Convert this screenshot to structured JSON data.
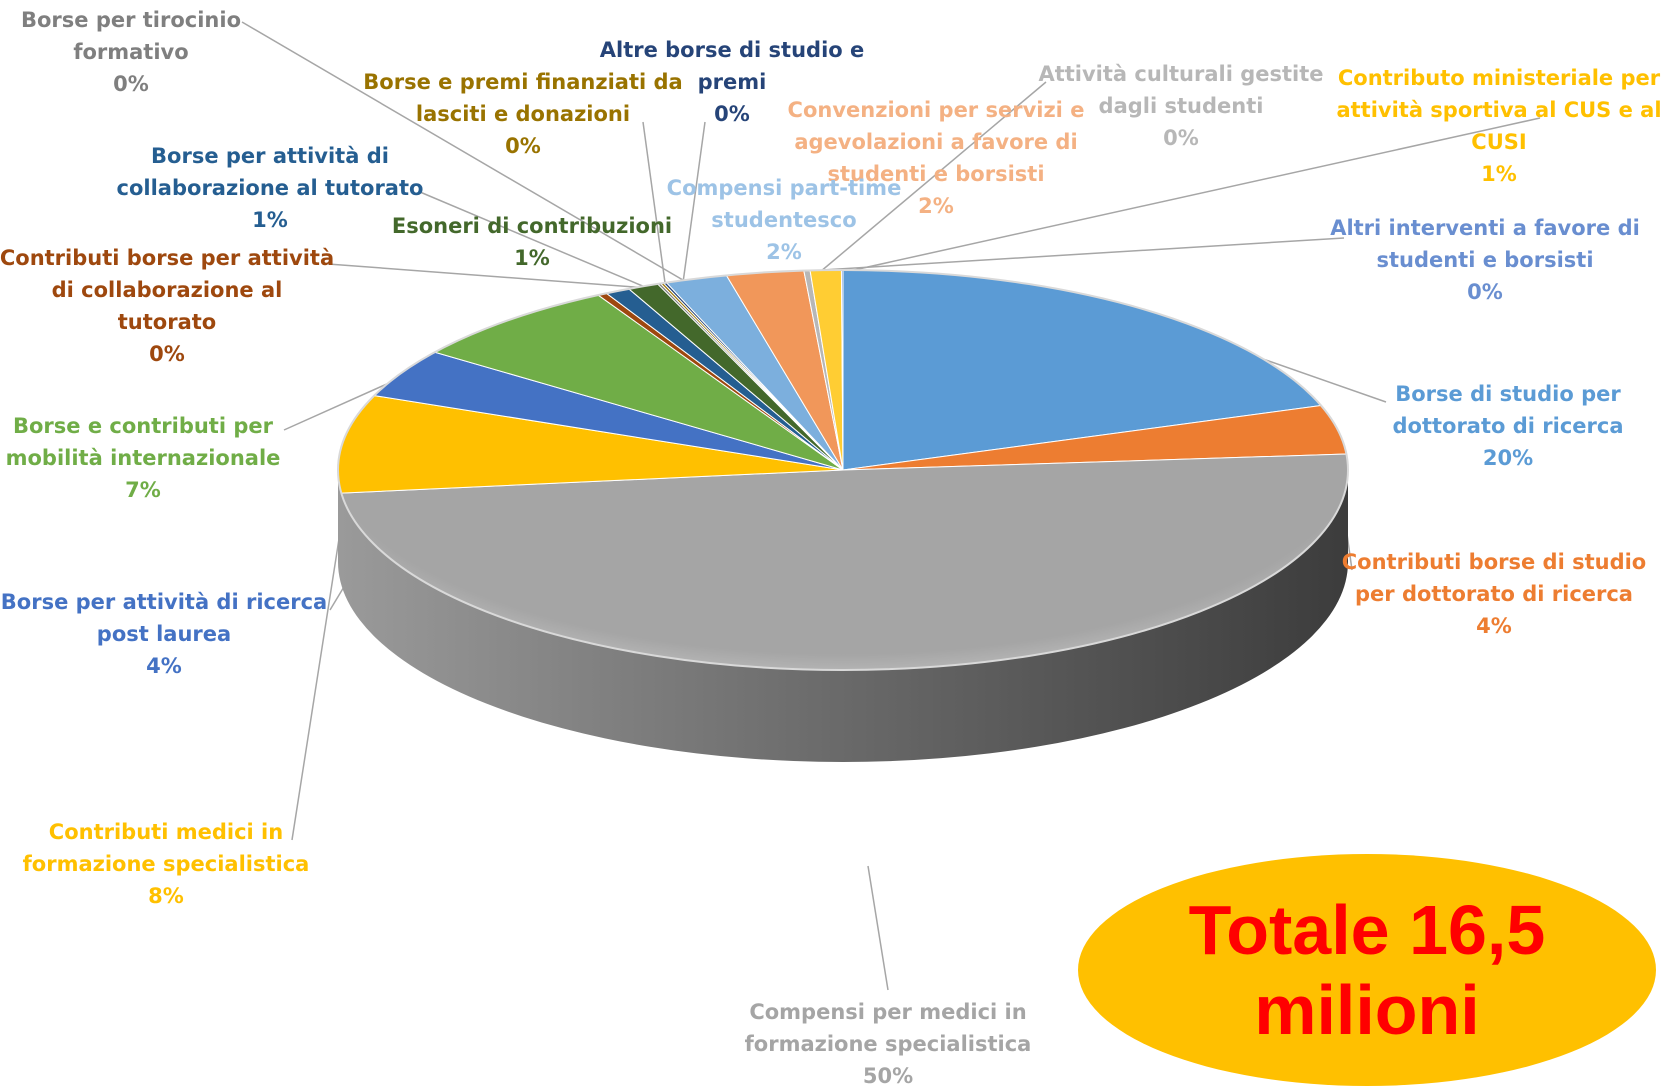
{
  "chart_data": {
    "type": "pie",
    "title": "",
    "slices": [
      {
        "label": "Borse di studio per dottorato di ricerca",
        "value": 20,
        "pct_label": "20%",
        "color": "#5b9bd5"
      },
      {
        "label": "Contributi borse di studio per dottorato di ricerca",
        "value": 4,
        "pct_label": "4%",
        "color": "#ed7d31"
      },
      {
        "label": "Compensi per medici in formazione specialistica",
        "value": 50,
        "pct_label": "50%",
        "color": "#a5a5a5"
      },
      {
        "label": "Contributi medici in formazione specialistica",
        "value": 8,
        "pct_label": "8%",
        "color": "#ffc000"
      },
      {
        "label": "Borse per attività di ricerca post laurea",
        "value": 4,
        "pct_label": "4%",
        "color": "#4472c4"
      },
      {
        "label": "Borse e contributi per mobilità internazionale",
        "value": 7,
        "pct_label": "7%",
        "color": "#70ad47"
      },
      {
        "label": "Contributi borse per attività di collaborazione al tutorato",
        "value": 0.3,
        "pct_label": "0%",
        "color": "#9e480e"
      },
      {
        "label": "Borse per attività di collaborazione al tutorato",
        "value": 0.8,
        "pct_label": "1%",
        "color": "#255e91"
      },
      {
        "label": "Esoneri di contribuzioni",
        "value": 1,
        "pct_label": "1%",
        "color": "#43682b"
      },
      {
        "label": "Borse per tirocinio formativo",
        "value": 0.1,
        "pct_label": "0%",
        "color": "#7f7f7f"
      },
      {
        "label": "Borse e premi finanziati da lasciti e donazioni",
        "value": 0.1,
        "pct_label": "0%",
        "color": "#997300"
      },
      {
        "label": "Altre borse di studio e premi",
        "value": 0.1,
        "pct_label": "0%",
        "color": "#264478"
      },
      {
        "label": "Compensi part-time studentesco",
        "value": 2,
        "pct_label": "2%",
        "color": "#7cafdd"
      },
      {
        "label": "Convenzioni per servizi e agevolazioni a favore di studenti e borsisti",
        "value": 2.5,
        "pct_label": "2%",
        "color": "#f1975a"
      },
      {
        "label": "Attività culturali gestite dagli studenti",
        "value": 0.2,
        "pct_label": "0%",
        "color": "#b7b7b7"
      },
      {
        "label": "Contributo ministeriale per attività sportiva al CUS e al CUSI",
        "value": 1,
        "pct_label": "1%",
        "color": "#ffcd33"
      },
      {
        "label": "Altri interventi a favore di studenti e borsisti",
        "value": 0.05,
        "pct_label": "0%",
        "color": "#698ed0"
      }
    ],
    "legend": "none",
    "data_labels": "outside with leader lines",
    "style": "3d-exploded-view"
  },
  "labels": [
    {
      "lines": [
        "Borse per tirocinio",
        "formativo"
      ],
      "pct": "0%",
      "color": "#7f7f7f",
      "name": "borse-tirocinio"
    },
    {
      "lines": [
        "Altre borse di studio e",
        "premi"
      ],
      "pct": "0%",
      "color": "#264478",
      "name": "altre-borse"
    },
    {
      "lines": [
        "Borse e premi finanziati da",
        "lasciti e donazioni"
      ],
      "pct": "0%",
      "color": "#997300",
      "name": "borse-lasciti"
    },
    {
      "lines": [
        "Attività culturali gestite",
        "dagli studenti"
      ],
      "pct": "0%",
      "color": "#b7b7b7",
      "name": "attivita-culturali"
    },
    {
      "lines": [
        "Contributo ministeriale per",
        "attività sportiva al CUS e al",
        "CUSI"
      ],
      "pct": "1%",
      "color": "#ffc000",
      "name": "contributo-cus"
    },
    {
      "lines": [
        "Convenzioni per servizi e",
        "agevolazioni a favore di",
        "studenti e borsisti"
      ],
      "pct": "2%",
      "color": "#f4b183",
      "name": "convenzioni"
    },
    {
      "lines": [
        "Borse per attività di",
        "collaborazione al tutorato"
      ],
      "pct": "1%",
      "color": "#255e91",
      "name": "borse-tutorato"
    },
    {
      "lines": [
        "Compensi part-time",
        "studentesco"
      ],
      "pct": "2%",
      "color": "#9dc3e6",
      "name": "part-time"
    },
    {
      "lines": [
        "Esoneri di contribuzioni"
      ],
      "pct": "1%",
      "color": "#43682b",
      "name": "esoneri"
    },
    {
      "lines": [
        "Altri interventi a favore di",
        "studenti e borsisti"
      ],
      "pct": "0%",
      "color": "#698ed0",
      "name": "altri-interventi"
    },
    {
      "lines": [
        "Contributi borse per attività",
        "di collaborazione al",
        "tutorato"
      ],
      "pct": "0%",
      "color": "#9e480e",
      "name": "contributi-tutorato"
    },
    {
      "lines": [
        "Borse di studio per",
        "dottorato di ricerca"
      ],
      "pct": "20%",
      "color": "#5b9bd5",
      "name": "borse-dottorato"
    },
    {
      "lines": [
        "Borse e contributi per",
        "mobilità internazionale"
      ],
      "pct": "7%",
      "color": "#70ad47",
      "name": "mobilita"
    },
    {
      "lines": [
        "Contributi borse di studio",
        "per dottorato di ricerca"
      ],
      "pct": "4%",
      "color": "#ed7d31",
      "name": "contributi-dottorato"
    },
    {
      "lines": [
        "Borse per attività di ricerca",
        "post laurea"
      ],
      "pct": "4%",
      "color": "#4472c4",
      "name": "ricerca-post-laurea"
    },
    {
      "lines": [
        "Contributi medici in",
        "formazione specialistica"
      ],
      "pct": "8%",
      "color": "#ffc000",
      "name": "contributi-medici"
    },
    {
      "lines": [
        "Compensi per medici in",
        "formazione specialistica"
      ],
      "pct": "50%",
      "color": "#a5a5a5",
      "name": "compensi-medici"
    }
  ],
  "total_badge": {
    "text_line1": "Totale 16,5",
    "text_line2": "milioni",
    "bg_color": "#ffc000",
    "text_color": "#ff0000"
  }
}
